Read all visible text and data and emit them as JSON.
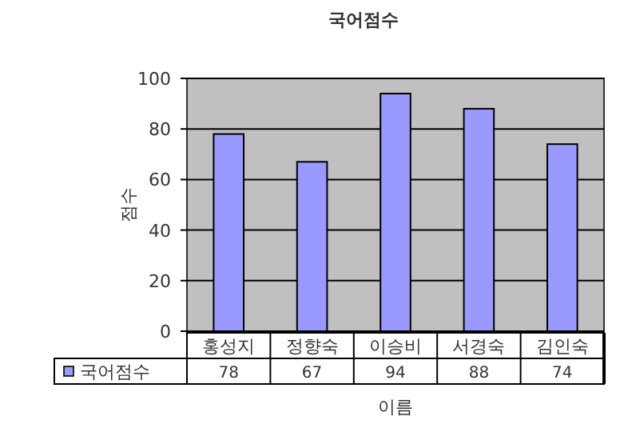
{
  "chart_data": {
    "type": "bar",
    "title": "국어점수",
    "xlabel": "이름",
    "ylabel": "점수",
    "categories": [
      "홍성지",
      "정향숙",
      "이승비",
      "서경숙",
      "김인숙"
    ],
    "series": [
      {
        "name": "국어점수",
        "color": "#9999ff",
        "values": [
          78,
          67,
          94,
          88,
          74
        ]
      }
    ],
    "ylim": [
      0,
      100
    ],
    "yticks": [
      0,
      20,
      40,
      60,
      80,
      100
    ],
    "grid": "y",
    "data_labels": true,
    "legend": "bottom"
  }
}
